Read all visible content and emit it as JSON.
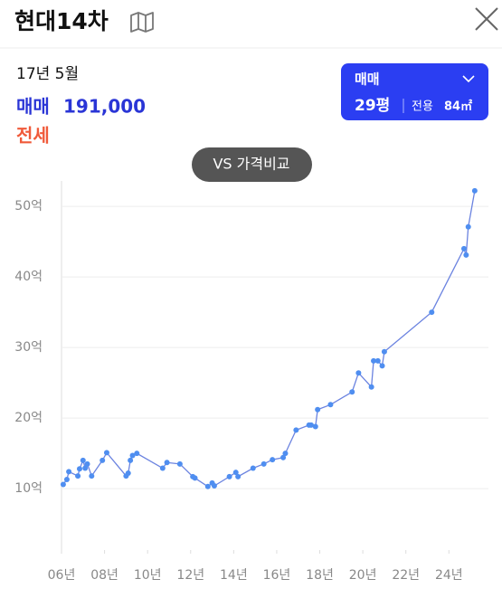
{
  "header": {
    "title": "현대14차"
  },
  "info": {
    "date": "17년 5월",
    "sale_label": "매매",
    "sale_price": "191,000",
    "jeonse_label": "전세"
  },
  "selector": {
    "type": "매매",
    "size": "29평",
    "area_label": "전용",
    "area": "84㎡"
  },
  "compare_button": "VS 가격비교",
  "chart_data": {
    "type": "line",
    "color": "#6b83e0",
    "marker_color": "#4f8ef0",
    "grid": true,
    "x": [
      2006.08,
      2006.25,
      2006.34,
      2006.76,
      2006.84,
      2007.0,
      2007.1,
      2007.2,
      2007.4,
      2007.9,
      2008.1,
      2009.0,
      2009.1,
      2009.2,
      2009.3,
      2009.5,
      2010.7,
      2010.9,
      2011.5,
      2012.1,
      2012.2,
      2012.8,
      2013.0,
      2013.1,
      2013.8,
      2014.1,
      2014.2,
      2014.9,
      2015.4,
      2015.8,
      2016.3,
      2016.4,
      2016.9,
      2017.5,
      2017.6,
      2017.8,
      2017.9,
      2018.5,
      2019.5,
      2019.8,
      2020.4,
      2020.5,
      2020.7,
      2020.9,
      2021.0,
      2023.2,
      2024.7,
      2024.8,
      2024.9,
      2025.2
    ],
    "values": [
      10.6,
      11.3,
      12.4,
      11.8,
      12.8,
      14.0,
      12.9,
      13.5,
      11.8,
      14.0,
      15.1,
      11.8,
      12.2,
      14.0,
      14.7,
      15.0,
      12.9,
      13.7,
      13.5,
      11.7,
      11.5,
      10.3,
      10.8,
      10.4,
      11.7,
      12.3,
      11.7,
      12.9,
      13.5,
      14.1,
      14.4,
      15.0,
      18.3,
      19.0,
      19.0,
      18.8,
      21.2,
      21.9,
      23.7,
      26.4,
      24.4,
      28.1,
      28.1,
      27.4,
      29.4,
      35.0,
      44.0,
      43.1,
      47.1,
      52.2
    ],
    "xlim": [
      2006,
      2025.5
    ],
    "ylim": [
      1.3,
      53.6
    ],
    "xticks": [
      {
        "value": 2006,
        "label": "06년"
      },
      {
        "value": 2008,
        "label": "08년"
      },
      {
        "value": 2010,
        "label": "10년"
      },
      {
        "value": 2012,
        "label": "12년"
      },
      {
        "value": 2014,
        "label": "14년"
      },
      {
        "value": 2016,
        "label": "16년"
      },
      {
        "value": 2018,
        "label": "18년"
      },
      {
        "value": 2020,
        "label": "20년"
      },
      {
        "value": 2022,
        "label": "22년"
      },
      {
        "value": 2024,
        "label": "24년"
      }
    ],
    "yticks": [
      {
        "value": 10,
        "label": "10억"
      },
      {
        "value": 20,
        "label": "20억"
      },
      {
        "value": 30,
        "label": "30억"
      },
      {
        "value": 40,
        "label": "40억"
      },
      {
        "value": 50,
        "label": "50억"
      }
    ]
  }
}
